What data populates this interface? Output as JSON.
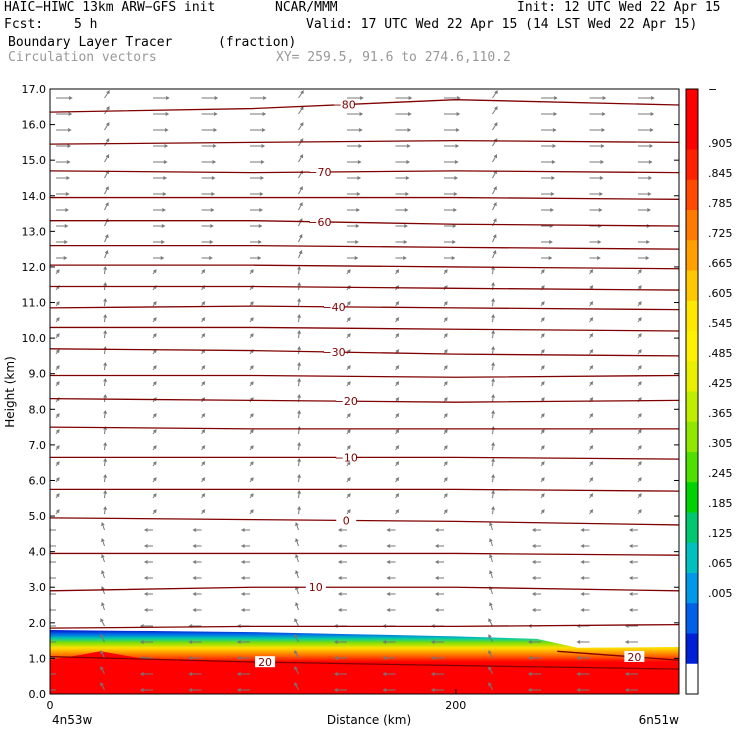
{
  "header": {
    "model": "HAIC−HIWC 13km ARW−GFS init",
    "org": "NCAR/MMM",
    "init": "Init: 12 UTC Wed 22 Apr 15",
    "fcst_label": "Fcst:",
    "fcst_value": "5 h",
    "valid": "Valid: 17 UTC Wed 22 Apr 15 (14 LST Wed 22 Apr 15)",
    "field": "Boundary Layer Tracer",
    "units": "(fraction)",
    "vectors": "Circulation vectors",
    "xy": "XY= 259.5, 91.6 to 274.6,110.2"
  },
  "chart_data": {
    "type": "heatmap",
    "xlabel": "Distance (km)",
    "ylabel": "Height (km)",
    "xlim": [
      0,
      310
    ],
    "ylim": [
      0,
      17
    ],
    "x_ticks": [
      {
        "value": 0,
        "label": "0"
      },
      {
        "value": 200,
        "label": "200"
      }
    ],
    "x_endpoints": {
      "left": "4n53w",
      "right": "6n51w"
    },
    "y_ticks": [
      {
        "value": 0,
        "label": "0.0"
      },
      {
        "value": 1,
        "label": "1.0"
      },
      {
        "value": 2,
        "label": "2.0"
      },
      {
        "value": 3,
        "label": "3.0"
      },
      {
        "value": 4,
        "label": "4.0"
      },
      {
        "value": 5,
        "label": "5.0"
      },
      {
        "value": 6,
        "label": "6.0"
      },
      {
        "value": 7,
        "label": "7.0"
      },
      {
        "value": 8,
        "label": "8.0"
      },
      {
        "value": 9,
        "label": "9.0"
      },
      {
        "value": 10,
        "label": "10.0"
      },
      {
        "value": 11,
        "label": "11.0"
      },
      {
        "value": 12,
        "label": "12.0"
      },
      {
        "value": 13,
        "label": "13.0"
      },
      {
        "value": 14,
        "label": "14.0"
      },
      {
        "value": 15,
        "label": "15.0"
      },
      {
        "value": 16,
        "label": "16.0"
      },
      {
        "value": 17,
        "label": "17.0"
      }
    ],
    "colorbar": {
      "labels": [
        "−",
        ".905",
        ".845",
        ".785",
        ".725",
        ".665",
        ".605",
        ".545",
        ".485",
        ".425",
        ".365",
        ".305",
        ".245",
        ".185",
        ".125",
        ".065",
        ".005"
      ],
      "colors": [
        "#ff0000",
        "#ff0000",
        "#ff2000",
        "#ff4a00",
        "#ff7a00",
        "#ffa000",
        "#ffc800",
        "#ffe800",
        "#fff000",
        "#e8f000",
        "#c0ee00",
        "#90e800",
        "#50e000",
        "#00d400",
        "#00c870",
        "#00c0c0",
        "#0098e8",
        "#0060e8",
        "#0020d8",
        "#ffffff"
      ]
    },
    "tracer_layer": {
      "x": [
        0,
        25,
        50,
        100,
        150,
        200,
        240,
        260,
        310
      ],
      "top": [
        1.8,
        1.78,
        1.77,
        1.74,
        1.68,
        1.62,
        1.55,
        1.3,
        1.32
      ],
      "red_top": [
        0.95,
        1.2,
        0.95,
        0.9,
        0.88,
        0.85,
        0.9,
        0.9,
        0.9
      ]
    },
    "temperature_contours": [
      {
        "label": "−80",
        "label_x": 145,
        "x": [
          0,
          100,
          200,
          310
        ],
        "y": [
          16.35,
          16.45,
          16.7,
          16.55
        ]
      },
      {
        "label": "",
        "x": [
          0,
          100,
          200,
          310
        ],
        "y": [
          15.45,
          15.5,
          15.55,
          15.5
        ]
      },
      {
        "label": "−70",
        "label_x": 133,
        "x": [
          0,
          100,
          200,
          310
        ],
        "y": [
          14.7,
          14.65,
          14.7,
          14.65
        ]
      },
      {
        "label": "",
        "x": [
          0,
          100,
          200,
          310
        ],
        "y": [
          13.95,
          13.95,
          13.95,
          13.9
        ]
      },
      {
        "label": "−60",
        "label_x": 133,
        "x": [
          0,
          100,
          200,
          310
        ],
        "y": [
          13.3,
          13.3,
          13.2,
          13.15
        ]
      },
      {
        "label": "",
        "x": [
          0,
          100,
          200,
          310
        ],
        "y": [
          12.6,
          12.6,
          12.55,
          12.5
        ]
      },
      {
        "label": "",
        "x": [
          0,
          100,
          200,
          310
        ],
        "y": [
          12.05,
          12.05,
          12.0,
          11.95
        ]
      },
      {
        "label": "",
        "x": [
          0,
          100,
          200,
          310
        ],
        "y": [
          11.45,
          11.45,
          11.4,
          11.35
        ]
      },
      {
        "label": "−40",
        "label_x": 140,
        "x": [
          0,
          100,
          200,
          310
        ],
        "y": [
          10.85,
          10.9,
          10.85,
          10.8
        ]
      },
      {
        "label": "",
        "x": [
          0,
          100,
          200,
          310
        ],
        "y": [
          10.3,
          10.3,
          10.25,
          10.2
        ]
      },
      {
        "label": "−30",
        "label_x": 140,
        "x": [
          0,
          100,
          200,
          310
        ],
        "y": [
          9.7,
          9.65,
          9.55,
          9.5
        ]
      },
      {
        "label": "",
        "x": [
          0,
          100,
          200,
          310
        ],
        "y": [
          8.95,
          8.95,
          8.9,
          8.95
        ]
      },
      {
        "label": "−20",
        "label_x": 146,
        "x": [
          0,
          100,
          200,
          310
        ],
        "y": [
          8.3,
          8.25,
          8.2,
          8.25
        ]
      },
      {
        "label": "",
        "x": [
          0,
          100,
          200,
          310
        ],
        "y": [
          7.5,
          7.45,
          7.45,
          7.45
        ]
      },
      {
        "label": "−10",
        "label_x": 146,
        "x": [
          0,
          100,
          200,
          310
        ],
        "y": [
          6.65,
          6.65,
          6.65,
          6.6
        ]
      },
      {
        "label": "",
        "x": [
          0,
          100,
          200,
          310
        ],
        "y": [
          5.75,
          5.75,
          5.75,
          5.7
        ]
      },
      {
        "label": "0",
        "label_x": 146,
        "x": [
          0,
          100,
          200,
          310
        ],
        "y": [
          4.95,
          4.9,
          4.85,
          4.75
        ]
      },
      {
        "label": "",
        "x": [
          0,
          100,
          200,
          310
        ],
        "y": [
          3.95,
          3.95,
          3.95,
          3.9
        ]
      },
      {
        "label": "10",
        "label_x": 131,
        "x": [
          0,
          100,
          200,
          310
        ],
        "y": [
          2.9,
          3.0,
          3.0,
          2.9
        ]
      },
      {
        "label": "",
        "x": [
          0,
          100,
          200,
          310
        ],
        "y": [
          1.85,
          1.9,
          1.9,
          1.95
        ]
      },
      {
        "label": "20",
        "label_x": 106,
        "x": [
          0,
          100,
          200,
          310
        ],
        "y": [
          1.05,
          0.9,
          0.8,
          0.7
        ]
      },
      {
        "label": "20",
        "label_x": 288,
        "x": [
          250,
          310
        ],
        "y": [
          1.2,
          0.95
        ]
      }
    ]
  }
}
